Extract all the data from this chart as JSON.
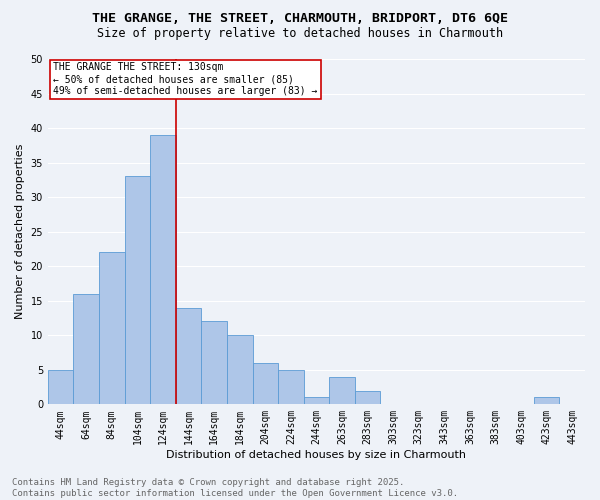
{
  "title_line1": "THE GRANGE, THE STREET, CHARMOUTH, BRIDPORT, DT6 6QE",
  "title_line2": "Size of property relative to detached houses in Charmouth",
  "xlabel": "Distribution of detached houses by size in Charmouth",
  "ylabel": "Number of detached properties",
  "bin_labels": [
    "44sqm",
    "64sqm",
    "84sqm",
    "104sqm",
    "124sqm",
    "144sqm",
    "164sqm",
    "184sqm",
    "204sqm",
    "224sqm",
    "244sqm",
    "263sqm",
    "283sqm",
    "303sqm",
    "323sqm",
    "343sqm",
    "363sqm",
    "383sqm",
    "403sqm",
    "423sqm",
    "443sqm"
  ],
  "bar_values": [
    5,
    16,
    22,
    33,
    39,
    14,
    12,
    10,
    6,
    5,
    1,
    4,
    2,
    0,
    0,
    0,
    0,
    0,
    0,
    1,
    0
  ],
  "bar_color": "#aec6e8",
  "bar_edge_color": "#5b9bd5",
  "vline_x": 4.5,
  "vline_color": "#cc0000",
  "annotation_text": "THE GRANGE THE STREET: 130sqm\n← 50% of detached houses are smaller (85)\n49% of semi-detached houses are larger (83) →",
  "annotation_box_color": "white",
  "annotation_box_edge": "#cc0000",
  "ylim": [
    0,
    50
  ],
  "yticks": [
    0,
    5,
    10,
    15,
    20,
    25,
    30,
    35,
    40,
    45,
    50
  ],
  "footnote": "Contains HM Land Registry data © Crown copyright and database right 2025.\nContains public sector information licensed under the Open Government Licence v3.0.",
  "bg_color": "#eef2f8",
  "grid_color": "#ffffff",
  "title_fontsize": 9.5,
  "subtitle_fontsize": 8.5,
  "label_fontsize": 8,
  "tick_fontsize": 7,
  "annot_fontsize": 7,
  "footnote_fontsize": 6.5
}
